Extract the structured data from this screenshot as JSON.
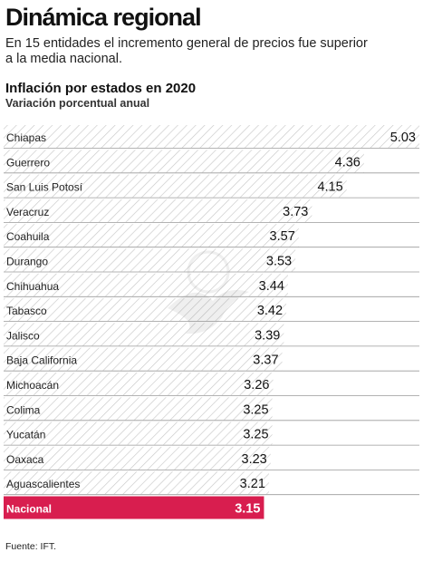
{
  "header": {
    "title": "Dinámica regional",
    "subtitle": "En 15 entidades el incremento general de precios fue superior a la media nacional."
  },
  "chart_data": {
    "type": "bar",
    "orientation": "horizontal",
    "title": "Inflación por estados en 2020",
    "subtitle": "Variación porcentual anual",
    "categories": [
      "Chiapas",
      "Guerrero",
      "San Luis Potosí",
      "Veracruz",
      "Coahuila",
      "Durango",
      "Chihuahua",
      "Tabasco",
      "Jalisco",
      "Baja California",
      "Michoacán",
      "Colima",
      "Yucatán",
      "Oaxaca",
      "Aguascalientes",
      "Nacional"
    ],
    "values": [
      5.03,
      4.36,
      4.15,
      3.73,
      3.57,
      3.53,
      3.44,
      3.42,
      3.39,
      3.37,
      3.26,
      3.25,
      3.25,
      3.23,
      3.21,
      3.15
    ],
    "value_labels": [
      "5.03",
      "4.36",
      "4.15",
      "3.73",
      "3.57",
      "3.53",
      "3.44",
      "3.42",
      "3.39",
      "3.37",
      "3.26",
      "3.25",
      "3.25",
      "3.23",
      "3.21",
      "3.15"
    ],
    "highlight": "Nacional",
    "xlim": [
      0,
      5.03
    ],
    "grid": false,
    "legend": "none",
    "colors": {
      "hatch": "#c8c8c8",
      "highlight": "#d81e4f",
      "highlight_text": "#ffffff",
      "divider": "#9a9a9a"
    }
  },
  "footer": {
    "source": "Fuente: IFT."
  }
}
